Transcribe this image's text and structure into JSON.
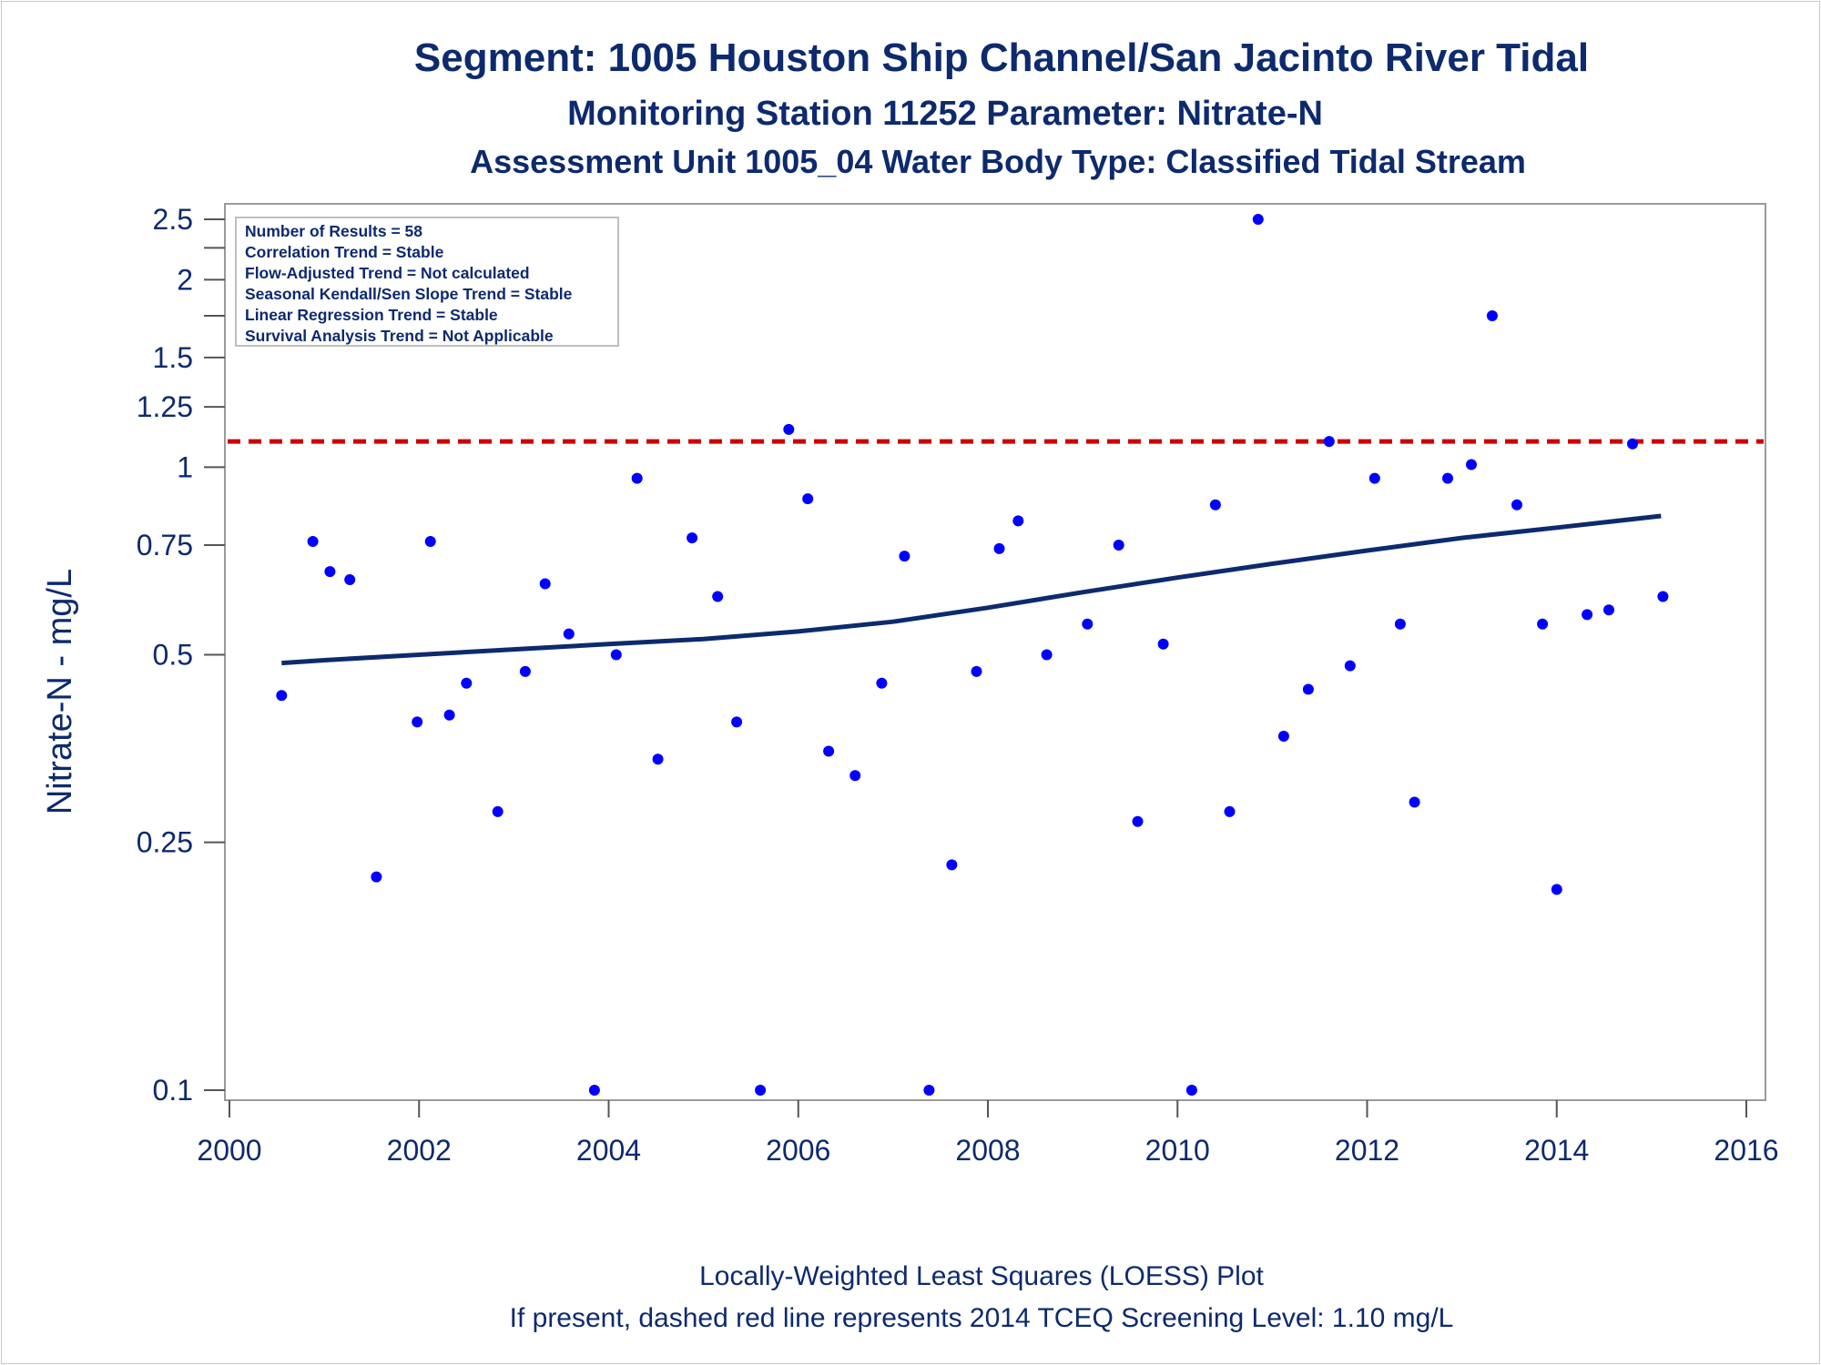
{
  "chart_data": {
    "type": "scatter",
    "title": "Segment: 1005  Houston Ship Channel/San Jacinto River Tidal",
    "subtitle": "Monitoring Station 11252 Parameter: Nitrate-N",
    "subtitle2": "Assessment Unit 1005_04   Water Body Type: Classified Tidal Stream",
    "xlabel": "",
    "ylabel": "Nitrate-N - mg/L",
    "yscale": "log",
    "xlim": [
      2000,
      2016
    ],
    "ylim": [
      0.1,
      2.6
    ],
    "x_ticks": [
      2000,
      2002,
      2004,
      2006,
      2008,
      2010,
      2012,
      2014,
      2016
    ],
    "y_ticks_major": [
      0.1,
      0.25,
      0.5,
      0.75,
      1,
      1.25,
      1.5,
      2,
      2.5
    ],
    "y_tick_labels": [
      "0.1",
      "0.25",
      "0.5",
      "0.75",
      "1",
      "1.25",
      "1.5",
      "2",
      "2.5"
    ],
    "y_ticks_minor": [
      1.75,
      2.25
    ],
    "grid": false,
    "stats_box": [
      "Number of Results = 58",
      "Correlation Trend = Stable",
      "Flow-Adjusted Trend = Not calculated",
      "Seasonal Kendall/Sen Slope Trend = Stable",
      "Linear Regression Trend = Stable",
      "Survival Analysis Trend = Not Applicable"
    ],
    "stats_box_placement": "top-left",
    "screening_level": {
      "value": 1.1,
      "style": "dashed",
      "color": "#cc0000"
    },
    "points": [
      [
        2000.55,
        0.43
      ],
      [
        2000.88,
        0.76
      ],
      [
        2001.06,
        0.68
      ],
      [
        2001.27,
        0.66
      ],
      [
        2001.55,
        0.22
      ],
      [
        2001.98,
        0.39
      ],
      [
        2002.12,
        0.76
      ],
      [
        2002.32,
        0.4
      ],
      [
        2002.5,
        0.45
      ],
      [
        2002.83,
        0.28
      ],
      [
        2003.12,
        0.47
      ],
      [
        2003.33,
        0.65
      ],
      [
        2003.58,
        0.54
      ],
      [
        2003.85,
        0.1
      ],
      [
        2004.08,
        0.5
      ],
      [
        2004.3,
        0.96
      ],
      [
        2004.52,
        0.34
      ],
      [
        2004.88,
        0.77
      ],
      [
        2005.15,
        0.62
      ],
      [
        2005.35,
        0.39
      ],
      [
        2005.6,
        0.1
      ],
      [
        2005.9,
        1.15
      ],
      [
        2006.1,
        0.89
      ],
      [
        2006.32,
        0.35
      ],
      [
        2006.6,
        0.32
      ],
      [
        2006.88,
        0.45
      ],
      [
        2007.12,
        0.72
      ],
      [
        2007.38,
        0.1
      ],
      [
        2007.62,
        0.23
      ],
      [
        2007.88,
        0.47
      ],
      [
        2008.12,
        0.74
      ],
      [
        2008.32,
        0.82
      ],
      [
        2008.62,
        0.5
      ],
      [
        2009.05,
        0.56
      ],
      [
        2009.38,
        0.75
      ],
      [
        2009.58,
        0.27
      ],
      [
        2009.85,
        0.52
      ],
      [
        2010.15,
        0.1
      ],
      [
        2010.4,
        0.87
      ],
      [
        2010.55,
        0.28
      ],
      [
        2010.85,
        2.5
      ],
      [
        2011.12,
        0.37
      ],
      [
        2011.38,
        0.44
      ],
      [
        2011.6,
        1.1
      ],
      [
        2011.82,
        0.48
      ],
      [
        2012.08,
        0.96
      ],
      [
        2012.35,
        0.56
      ],
      [
        2012.5,
        0.29
      ],
      [
        2012.85,
        0.96
      ],
      [
        2013.1,
        1.01
      ],
      [
        2013.32,
        1.75
      ],
      [
        2013.58,
        0.87
      ],
      [
        2013.85,
        0.56
      ],
      [
        2014.0,
        0.21
      ],
      [
        2014.32,
        0.58
      ],
      [
        2014.55,
        0.59
      ],
      [
        2014.8,
        1.09
      ],
      [
        2015.12,
        0.62
      ]
    ],
    "loess_line": [
      [
        2000.55,
        0.485
      ],
      [
        2001.0,
        0.49
      ],
      [
        2002.0,
        0.5
      ],
      [
        2003.0,
        0.51
      ],
      [
        2004.0,
        0.52
      ],
      [
        2005.0,
        0.53
      ],
      [
        2006.0,
        0.545
      ],
      [
        2007.0,
        0.565
      ],
      [
        2008.0,
        0.595
      ],
      [
        2009.0,
        0.63
      ],
      [
        2010.0,
        0.665
      ],
      [
        2011.0,
        0.7
      ],
      [
        2012.0,
        0.735
      ],
      [
        2013.0,
        0.77
      ],
      [
        2014.0,
        0.8
      ],
      [
        2015.1,
        0.835
      ]
    ],
    "point_color": "#0000ff",
    "line_color": "#0d2a6e"
  },
  "footnotes": {
    "line1": "Locally-Weighted Least Squares (LOESS) Plot",
    "line2": "If present, dashed red line represents 2014 TCEQ Screening Level: 1.10 mg/L"
  }
}
